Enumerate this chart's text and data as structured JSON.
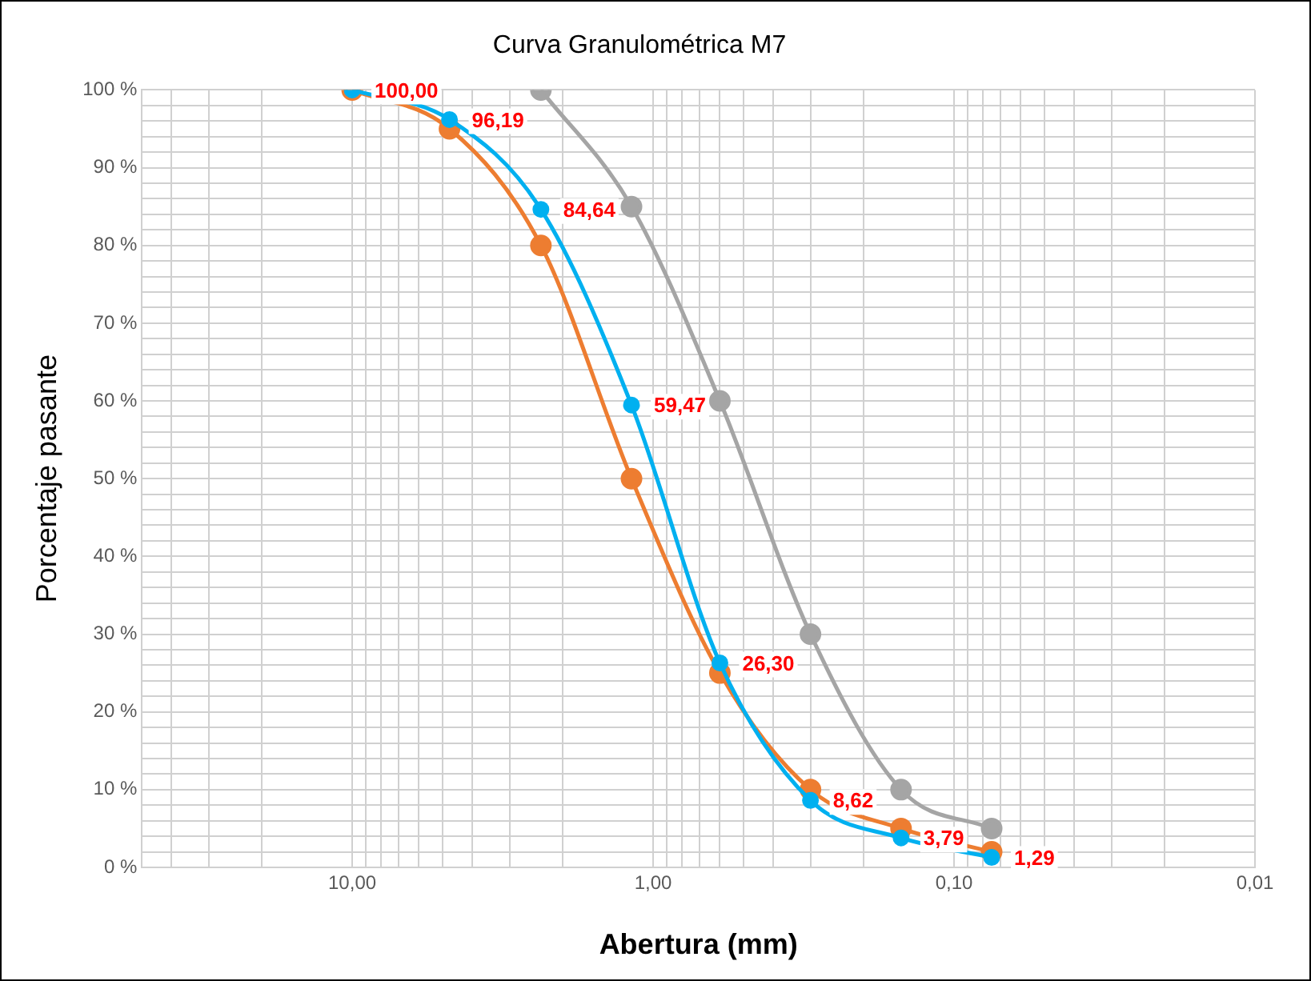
{
  "chart_data": {
    "type": "line",
    "title": "Curva Granulométrica M7",
    "xlabel": "Abertura (mm)",
    "ylabel": "Porcentaje pasante",
    "x": [
      10,
      4.75,
      2.36,
      1.18,
      0.6,
      0.3,
      0.15,
      0.075
    ],
    "series": [
      {
        "color": "#00b0f0",
        "values": [
          100,
          96.19,
          84.64,
          59.47,
          26.3,
          8.62,
          3.79,
          1.29
        ],
        "value_labels": [
          "100,00",
          "96,19",
          "84,64",
          "59,47",
          "26,30",
          "8,62",
          "3,79",
          "1,29"
        ]
      },
      {
        "color": "#ed7d31",
        "values": [
          100,
          95,
          80,
          50,
          25,
          10,
          5,
          2
        ]
      },
      {
        "color": "#a5a5a5",
        "values": [
          null,
          null,
          100,
          85,
          60,
          30,
          10,
          5
        ]
      }
    ],
    "log": "x",
    "xlim": [
      50,
      0.01
    ],
    "xticks": [
      {
        "value": 50,
        "label": null
      },
      {
        "value": 40,
        "label": null
      },
      {
        "value": 30,
        "label": null
      },
      {
        "value": 20,
        "label": null
      },
      {
        "value": 10,
        "label": "10,00"
      },
      {
        "value": 9,
        "label": null
      },
      {
        "value": 8,
        "label": null
      },
      {
        "value": 7,
        "label": null
      },
      {
        "value": 6,
        "label": null
      },
      {
        "value": 5,
        "label": null
      },
      {
        "value": 4,
        "label": null
      },
      {
        "value": 3,
        "label": null
      },
      {
        "value": 2,
        "label": null
      },
      {
        "value": 1,
        "label": "1,00"
      },
      {
        "value": 0.9,
        "label": null
      },
      {
        "value": 0.8,
        "label": null
      },
      {
        "value": 0.7,
        "label": null
      },
      {
        "value": 0.6,
        "label": null
      },
      {
        "value": 0.5,
        "label": null
      },
      {
        "value": 0.4,
        "label": null
      },
      {
        "value": 0.3,
        "label": null
      },
      {
        "value": 0.2,
        "label": null
      },
      {
        "value": 0.1,
        "label": "0,10"
      },
      {
        "value": 0.09,
        "label": null
      },
      {
        "value": 0.08,
        "label": null
      },
      {
        "value": 0.07,
        "label": null
      },
      {
        "value": 0.06,
        "label": null
      },
      {
        "value": 0.05,
        "label": null
      },
      {
        "value": 0.04,
        "label": null
      },
      {
        "value": 0.03,
        "label": null
      },
      {
        "value": 0.02,
        "label": null
      },
      {
        "value": 0.01,
        "label": "0,01"
      }
    ],
    "ylim": [
      0,
      100
    ],
    "yticks": [
      {
        "value": 0,
        "label": "0 %"
      },
      {
        "value": 2,
        "label": null
      },
      {
        "value": 4,
        "label": null
      },
      {
        "value": 6,
        "label": null
      },
      {
        "value": 8,
        "label": null
      },
      {
        "value": 10,
        "label": "10 %"
      },
      {
        "value": 12,
        "label": null
      },
      {
        "value": 14,
        "label": null
      },
      {
        "value": 16,
        "label": null
      },
      {
        "value": 18,
        "label": null
      },
      {
        "value": 20,
        "label": "20 %"
      },
      {
        "value": 22,
        "label": null
      },
      {
        "value": 24,
        "label": null
      },
      {
        "value": 26,
        "label": null
      },
      {
        "value": 28,
        "label": null
      },
      {
        "value": 30,
        "label": "30 %"
      },
      {
        "value": 32,
        "label": null
      },
      {
        "value": 34,
        "label": null
      },
      {
        "value": 36,
        "label": null
      },
      {
        "value": 38,
        "label": null
      },
      {
        "value": 40,
        "label": "40 %"
      },
      {
        "value": 42,
        "label": null
      },
      {
        "value": 44,
        "label": null
      },
      {
        "value": 46,
        "label": null
      },
      {
        "value": 48,
        "label": null
      },
      {
        "value": 50,
        "label": "50 %"
      },
      {
        "value": 52,
        "label": null
      },
      {
        "value": 54,
        "label": null
      },
      {
        "value": 56,
        "label": null
      },
      {
        "value": 58,
        "label": null
      },
      {
        "value": 60,
        "label": "60 %"
      },
      {
        "value": 62,
        "label": null
      },
      {
        "value": 64,
        "label": null
      },
      {
        "value": 66,
        "label": null
      },
      {
        "value": 68,
        "label": null
      },
      {
        "value": 70,
        "label": "70 %"
      },
      {
        "value": 72,
        "label": null
      },
      {
        "value": 74,
        "label": null
      },
      {
        "value": 76,
        "label": null
      },
      {
        "value": 78,
        "label": null
      },
      {
        "value": 80,
        "label": "80 %"
      },
      {
        "value": 82,
        "label": null
      },
      {
        "value": 84,
        "label": null
      },
      {
        "value": 86,
        "label": null
      },
      {
        "value": 88,
        "label": null
      },
      {
        "value": 90,
        "label": "90 %"
      },
      {
        "value": 92,
        "label": null
      },
      {
        "value": 94,
        "label": null
      },
      {
        "value": 96,
        "label": null
      },
      {
        "value": 98,
        "label": null
      },
      {
        "value": 100,
        "label": "100 %"
      }
    ],
    "grid": true,
    "marker": "circle",
    "line_style": "solid"
  }
}
